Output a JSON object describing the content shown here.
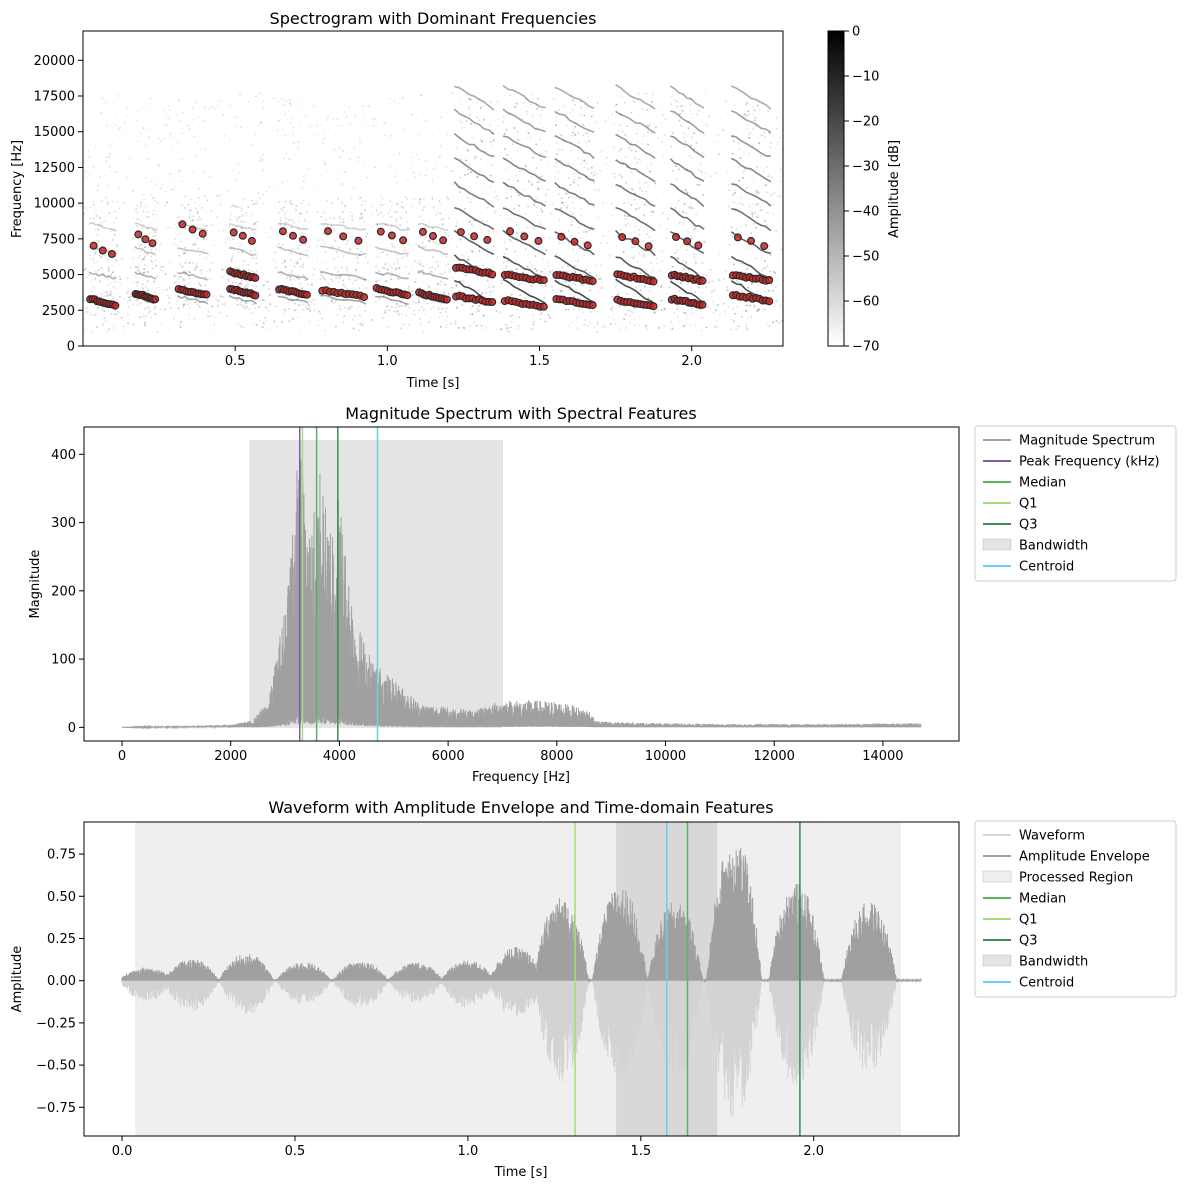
{
  "chart_data": [
    {
      "type": "heatmap",
      "title": "Spectrogram with Dominant Frequencies",
      "xlabel": "Time [s]",
      "ylabel": "Frequency [Hz]",
      "xlim": [
        0.0,
        2.3
      ],
      "ylim": [
        0,
        22050
      ],
      "xticks": [
        0.5,
        1.0,
        1.5,
        2.0
      ],
      "xtick_labels": [
        "0.5",
        "1.0",
        "1.5",
        "2.0"
      ],
      "yticks": [
        0,
        2500,
        5000,
        7500,
        10000,
        12500,
        15000,
        17500,
        20000
      ],
      "ytick_labels": [
        "0",
        "2500",
        "5000",
        "7500",
        "10000",
        "12500",
        "15000",
        "17500",
        "20000"
      ],
      "colorbar": {
        "label": "Amplitude [dB]",
        "range": [
          -70,
          0
        ],
        "ticks": [
          0,
          -10,
          -20,
          -30,
          -40,
          -50,
          -60,
          -70
        ],
        "tick_labels": [
          "0",
          "−10",
          "−20",
          "−30",
          "−40",
          "−50",
          "−60",
          "−70"
        ],
        "colormap": "gray_r"
      },
      "syllables": [
        {
          "start": 0.02,
          "end": 0.11,
          "harmonics": [
            3300,
            7000
          ]
        },
        {
          "start": 0.17,
          "end": 0.24,
          "harmonics": [
            3700,
            7800
          ]
        },
        {
          "start": 0.31,
          "end": 0.41,
          "harmonics": [
            4000,
            8500
          ]
        },
        {
          "start": 0.48,
          "end": 0.57,
          "harmonics": [
            4000,
            5200,
            8000
          ]
        },
        {
          "start": 0.64,
          "end": 0.74,
          "harmonics": [
            4000,
            8000
          ]
        },
        {
          "start": 0.78,
          "end": 0.93,
          "harmonics": [
            3900,
            8000
          ]
        },
        {
          "start": 0.96,
          "end": 1.07,
          "harmonics": [
            4000,
            8000
          ]
        },
        {
          "start": 1.1,
          "end": 1.2,
          "harmonics": [
            3700,
            8000
          ]
        },
        {
          "start": 1.22,
          "end": 1.35,
          "harmonics": [
            3500,
            5500,
            8000
          ]
        },
        {
          "start": 1.38,
          "end": 1.52,
          "harmonics": [
            3200,
            5000,
            8000
          ]
        },
        {
          "start": 1.55,
          "end": 1.68,
          "harmonics": [
            3300,
            5000,
            7600
          ]
        },
        {
          "start": 1.75,
          "end": 1.88,
          "harmonics": [
            3200,
            5000,
            7600
          ]
        },
        {
          "start": 1.93,
          "end": 2.04,
          "harmonics": [
            3300,
            5000,
            7600
          ]
        },
        {
          "start": 2.13,
          "end": 2.26,
          "harmonics": [
            3600,
            5000,
            7600
          ]
        }
      ],
      "dominant_frequency_points_color": "#cc2222"
    },
    {
      "type": "line",
      "title": "Magnitude Spectrum with Spectral Features",
      "xlabel": "Frequency [Hz]",
      "ylabel": "Magnitude",
      "xlim": [
        -700,
        15400
      ],
      "ylim": [
        -20,
        440
      ],
      "xticks": [
        0,
        2000,
        4000,
        6000,
        8000,
        10000,
        12000,
        14000
      ],
      "xtick_labels": [
        "0",
        "2000",
        "4000",
        "6000",
        "8000",
        "10000",
        "12000",
        "14000"
      ],
      "yticks": [
        0,
        100,
        200,
        300,
        400
      ],
      "ytick_labels": [
        "0",
        "100",
        "200",
        "300",
        "400"
      ],
      "spectrum_envelope": {
        "x": [
          0,
          1000,
          2000,
          2400,
          2700,
          3000,
          3200,
          3300,
          3400,
          3500,
          3600,
          3700,
          3800,
          3900,
          4000,
          4100,
          4300,
          4600,
          5000,
          5500,
          6000,
          6500,
          7000,
          7500,
          8000,
          8300,
          8600,
          8700,
          9000,
          10000,
          11000,
          12000,
          13000,
          14000,
          14700
        ],
        "y": [
          0,
          2,
          4,
          10,
          40,
          180,
          380,
          405,
          300,
          300,
          415,
          350,
          300,
          330,
          350,
          270,
          160,
          100,
          70,
          35,
          30,
          25,
          40,
          40,
          38,
          32,
          25,
          10,
          8,
          6,
          5,
          5,
          5,
          6,
          6
        ]
      },
      "markers": {
        "peak": 3270,
        "q1": 3320,
        "median": 3580,
        "q3": 3970,
        "centroid": 4700,
        "bandwidth": [
          2350,
          7000
        ],
        "bandwidth_top": 420
      },
      "legend": {
        "placement": "outside-right",
        "entries": [
          {
            "label": "Magnitude Spectrum",
            "color": "#a0a0a0",
            "kind": "line"
          },
          {
            "label": "Peak Frequency (kHz)",
            "color": "#7b5ea7",
            "kind": "line"
          },
          {
            "label": "Median",
            "color": "#5ab45a",
            "kind": "line"
          },
          {
            "label": "Q1",
            "color": "#a6dc78",
            "kind": "line"
          },
          {
            "label": "Q3",
            "color": "#3c8c50",
            "kind": "line"
          },
          {
            "label": "Bandwidth",
            "color": "#e4e4e4",
            "kind": "patch"
          },
          {
            "label": "Centroid",
            "color": "#6ccff0",
            "kind": "line"
          }
        ]
      }
    },
    {
      "type": "line",
      "title": "Waveform with Amplitude Envelope and Time-domain Features",
      "xlabel": "Time [s]",
      "ylabel": "Amplitude",
      "xlim": [
        -0.11,
        2.42
      ],
      "ylim": [
        -0.92,
        0.94
      ],
      "xticks": [
        0.0,
        0.5,
        1.0,
        1.5,
        2.0
      ],
      "xtick_labels": [
        "0.0",
        "0.5",
        "1.0",
        "1.5",
        "2.0"
      ],
      "yticks": [
        0.75,
        0.5,
        0.25,
        0.0,
        -0.25,
        -0.5,
        -0.75
      ],
      "ytick_labels": [
        "0.75",
        "0.50",
        "0.25",
        "0.00",
        "−0.25",
        "−0.50",
        "−0.75"
      ],
      "processed_region": [
        0.04,
        2.25
      ],
      "bandwidth_region": [
        1.43,
        1.72
      ],
      "markers": {
        "q1": 1.31,
        "centroid": 1.575,
        "median": 1.635,
        "q3": 1.96
      },
      "envelope_peaks": [
        {
          "center": 0.07,
          "amp": 0.08,
          "neg": -0.12
        },
        {
          "center": 0.2,
          "amp": 0.13,
          "neg": -0.18
        },
        {
          "center": 0.36,
          "amp": 0.16,
          "neg": -0.2
        },
        {
          "center": 0.525,
          "amp": 0.11,
          "neg": -0.14
        },
        {
          "center": 0.69,
          "amp": 0.12,
          "neg": -0.16
        },
        {
          "center": 0.85,
          "amp": 0.11,
          "neg": -0.13
        },
        {
          "center": 1.0,
          "amp": 0.12,
          "neg": -0.16
        },
        {
          "center": 1.14,
          "amp": 0.2,
          "neg": -0.22
        },
        {
          "center": 1.27,
          "amp": 0.5,
          "neg": -0.6
        },
        {
          "center": 1.44,
          "amp": 0.56,
          "neg": -0.6
        },
        {
          "center": 1.6,
          "amp": 0.47,
          "neg": -0.6
        },
        {
          "center": 1.77,
          "amp": 0.86,
          "neg": -0.82
        },
        {
          "center": 1.95,
          "amp": 0.58,
          "neg": -0.63
        },
        {
          "center": 2.16,
          "amp": 0.47,
          "neg": -0.55
        }
      ],
      "legend": {
        "placement": "outside-right",
        "entries": [
          {
            "label": "Waveform",
            "color": "#d3d3d3",
            "kind": "line"
          },
          {
            "label": "Amplitude Envelope",
            "color": "#a0a0a0",
            "kind": "line"
          },
          {
            "label": "Processed Region",
            "color": "#efefef",
            "kind": "patch"
          },
          {
            "label": "Median",
            "color": "#5ab45a",
            "kind": "line"
          },
          {
            "label": "Q1",
            "color": "#a6dc78",
            "kind": "line"
          },
          {
            "label": "Q3",
            "color": "#3c8c50",
            "kind": "line"
          },
          {
            "label": "Bandwidth",
            "color": "#e4e4e4",
            "kind": "patch"
          },
          {
            "label": "Centroid",
            "color": "#6ccff0",
            "kind": "line"
          }
        ]
      }
    }
  ]
}
